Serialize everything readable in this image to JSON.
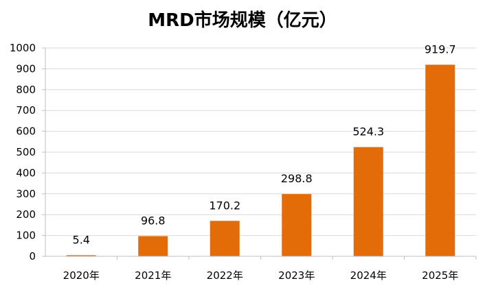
{
  "chart_data": {
    "type": "bar",
    "title": "MRD市场规模（亿元）",
    "categories": [
      "2020年",
      "2021年",
      "2022年",
      "2023年",
      "2024年",
      "2025年"
    ],
    "values": [
      5.4,
      96.8,
      170.2,
      298.8,
      524.3,
      919.7
    ],
    "data_labels": [
      "5.4",
      "96.8",
      "170.2",
      "298.8",
      "524.3",
      "919.7"
    ],
    "y_ticks": [
      "0",
      "100",
      "200",
      "300",
      "400",
      "500",
      "600",
      "700",
      "800",
      "900",
      "1000"
    ],
    "ylim": [
      0,
      1000
    ],
    "grid": true,
    "legend": "none",
    "bar_color": "#E36C09"
  }
}
